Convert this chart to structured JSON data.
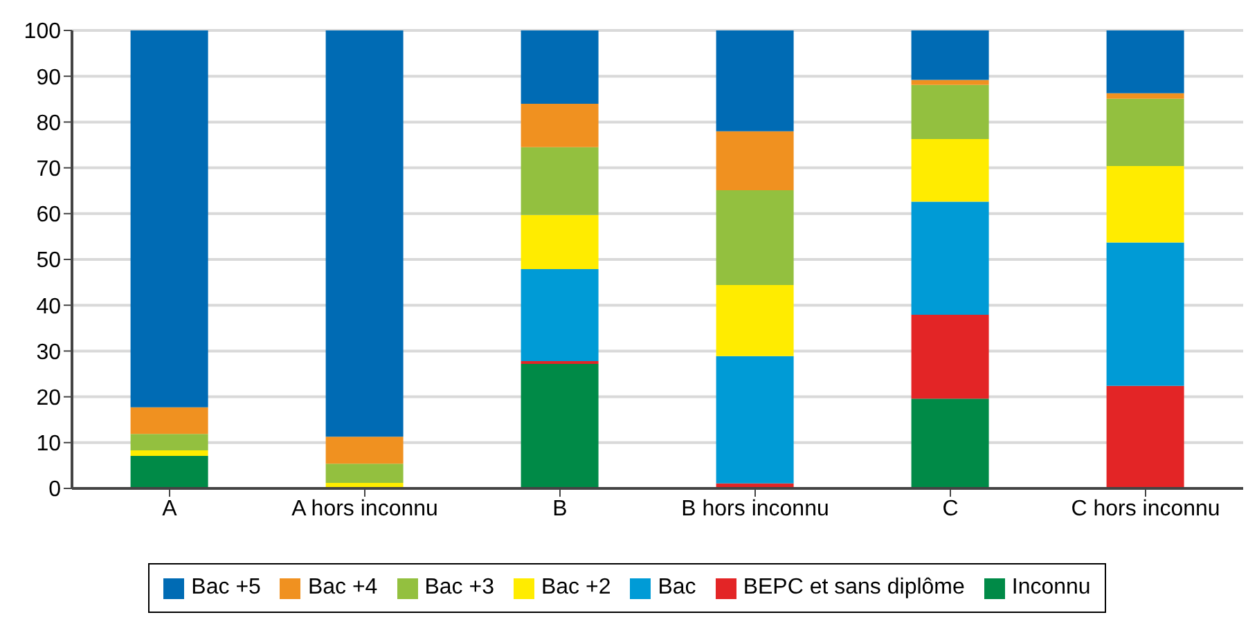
{
  "chart_data": {
    "type": "bar",
    "stacked": true,
    "categories": [
      "A",
      "A hors inconnu",
      "B",
      "B hors inconnu",
      "C",
      "C hors inconnu"
    ],
    "series": [
      {
        "name": "Inconnu",
        "color": "#008a47",
        "values": [
          7.1,
          0,
          27.2,
          0,
          19.6,
          0
        ]
      },
      {
        "name": "BEPC et sans diplôme",
        "color": "#e32526",
        "values": [
          0,
          0,
          0.6,
          1.1,
          18.3,
          22.4
        ]
      },
      {
        "name": "Bac",
        "color": "#009bd6",
        "values": [
          0,
          0,
          20.1,
          27.8,
          24.7,
          31.3
        ]
      },
      {
        "name": "Bac +2",
        "color": "#ffec00",
        "values": [
          1.2,
          1.2,
          11.8,
          15.5,
          13.7,
          16.7
        ]
      },
      {
        "name": "Bac +3",
        "color": "#93c03f",
        "values": [
          3.6,
          4.2,
          14.8,
          20.7,
          11.8,
          14.7
        ]
      },
      {
        "name": "Bac +4",
        "color": "#f09120",
        "values": [
          5.8,
          5.9,
          9.5,
          12.9,
          1.1,
          1.2
        ]
      },
      {
        "name": "Bac +5",
        "color": "#006bb4",
        "values": [
          82.3,
          88.7,
          16.0,
          22.0,
          10.8,
          13.7
        ]
      }
    ],
    "ylim": [
      0,
      100
    ],
    "yticks": [
      0,
      10,
      20,
      30,
      40,
      50,
      60,
      70,
      80,
      90,
      100
    ],
    "grid": "y",
    "legend": "bottom"
  }
}
